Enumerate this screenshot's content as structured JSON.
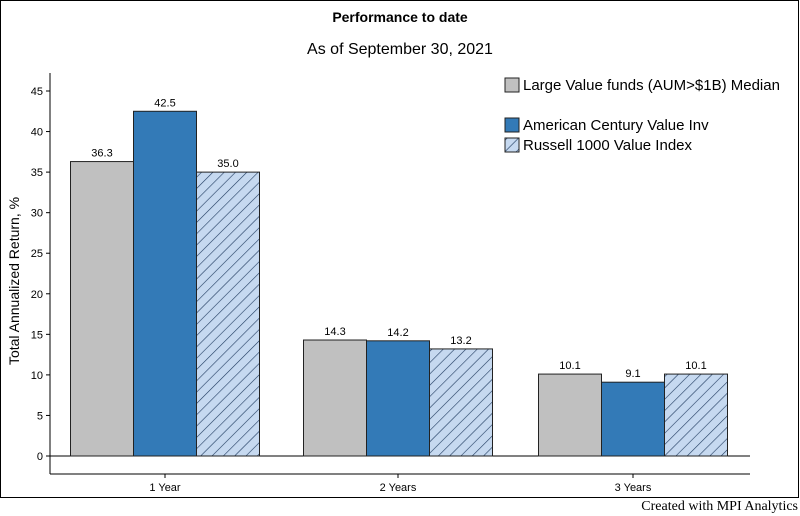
{
  "chart_data": {
    "type": "bar",
    "title": "Performance to date",
    "subtitle": "As of September 30, 2021",
    "ylabel": "Total Annualized Return, %",
    "xlabel": "",
    "ylim": [
      0,
      45
    ],
    "yticks": [
      0,
      5,
      10,
      15,
      20,
      25,
      30,
      35,
      40,
      45
    ],
    "categories": [
      "1 Year",
      "2 Years",
      "3 Years"
    ],
    "series": [
      {
        "name": "Large Value funds (AUM>$1B) Median",
        "values": [
          36.3,
          14.3,
          10.1
        ],
        "color": "#c0c0c0",
        "pattern": "solid"
      },
      {
        "name": "American Century Value Inv",
        "values": [
          42.5,
          14.2,
          9.1
        ],
        "color": "#337ab7",
        "pattern": "solid"
      },
      {
        "name": "Russell 1000 Value Index",
        "values": [
          35.0,
          13.2,
          10.1
        ],
        "color": "#c6d9f0",
        "pattern": "hatched"
      }
    ],
    "value_labels": [
      [
        "36.3",
        "14.3",
        "10.1"
      ],
      [
        "42.5",
        "14.2",
        "9.1"
      ],
      [
        "35.0",
        "13.2",
        "10.1"
      ]
    ],
    "legend_position": "top-right",
    "grid": false
  },
  "footer": "Created with MPI Analytics"
}
